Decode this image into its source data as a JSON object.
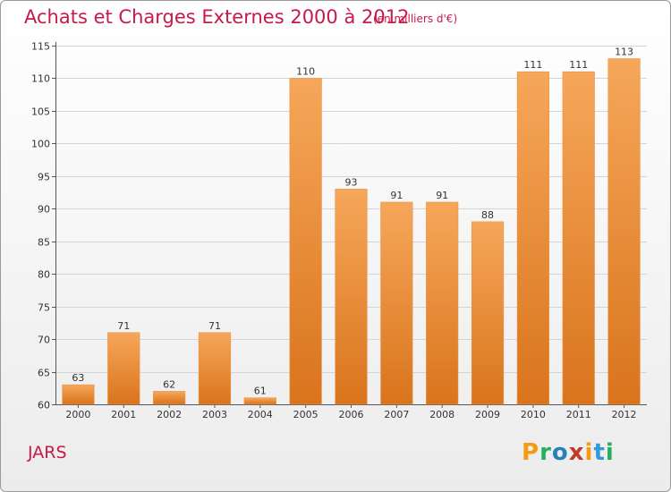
{
  "header": {
    "title": "Achats et Charges Externes 2000 à 2012",
    "subtitle": "(en milliers d'€)"
  },
  "footer": {
    "commune": "JARS",
    "brand_letters": [
      "P",
      "r",
      "o",
      "x",
      "i",
      "t",
      "i"
    ],
    "brand_colors": [
      "#f39c12",
      "#27ae60",
      "#2980b9",
      "#c0392b",
      "#f39c12",
      "#3498db",
      "#27ae60"
    ]
  },
  "colors": {
    "text_accent": "#c8194b",
    "bar_light": "#f6a75a",
    "bar_dark": "#d9741c",
    "grid": "#d4d4d4"
  },
  "chart_data": {
    "type": "bar",
    "title": "Achats et Charges Externes 2000 à 2012",
    "subtitle": "(en milliers d'€)",
    "categories": [
      "2000",
      "2001",
      "2002",
      "2003",
      "2004",
      "2005",
      "2006",
      "2007",
      "2008",
      "2009",
      "2010",
      "2011",
      "2012"
    ],
    "values": [
      63,
      71,
      62,
      71,
      61,
      110,
      93,
      91,
      91,
      88,
      111,
      111,
      113
    ],
    "ylim": [
      60,
      115
    ],
    "yticks": [
      60,
      65,
      70,
      75,
      80,
      85,
      90,
      95,
      100,
      105,
      110,
      115
    ],
    "grid": true,
    "data_labels": true
  }
}
